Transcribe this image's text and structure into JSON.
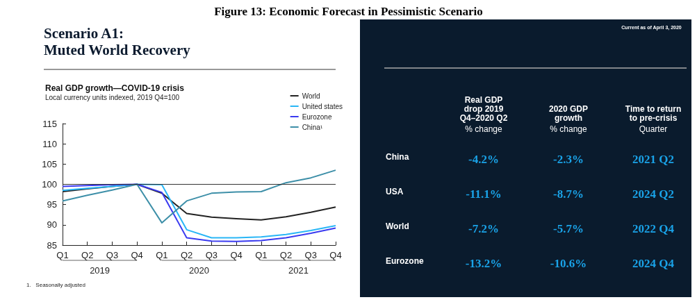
{
  "chart_data": [
    {
      "type": "line",
      "title": "Real GDP growth—COVID-19 crisis",
      "subtitle": "Local currency units indexed, 2019 Q4=100",
      "annotations": [
        "Figure 13: Economic Forecast in Pessimistic Scenario",
        "Scenario A1:\nMuted World Recovery",
        "2019",
        "2020",
        "2021",
        "1.   Seasonally adjusted"
      ],
      "categories": [
        "Q1",
        "Q2",
        "Q3",
        "Q4",
        "Q1",
        "Q2",
        "Q3",
        "Q4",
        "Q1",
        "Q2",
        "Q3",
        "Q4"
      ],
      "series": [
        {
          "name": "World",
          "color": "#222222",
          "values": [
            98.2,
            98.9,
            99.5,
            100,
            97.8,
            92.8,
            91.9,
            91.5,
            91.2,
            92.0,
            93.1,
            94.4
          ]
        },
        {
          "name": "United states",
          "color": "#29b6f6",
          "values": [
            98.5,
            99.0,
            99.5,
            100,
            99.9,
            88.8,
            86.8,
            86.8,
            87.0,
            87.6,
            88.6,
            89.8
          ]
        },
        {
          "name": "Eurozone",
          "color": "#3a3af0",
          "values": [
            99.5,
            99.7,
            99.9,
            100,
            98.0,
            86.8,
            86.0,
            85.9,
            86.1,
            86.8,
            87.9,
            89.2
          ]
        },
        {
          "name": "China¹",
          "color": "#3d8fa8",
          "values": [
            95.9,
            97.3,
            98.6,
            100,
            90.5,
            95.9,
            97.8,
            98.1,
            98.2,
            100.4,
            101.6,
            103.5
          ]
        }
      ],
      "ylim": [
        85,
        115
      ],
      "yticks": [
        85,
        90,
        95,
        100,
        105,
        110,
        115
      ],
      "ref_lines": [
        {
          "axis": "y",
          "value": 100,
          "label": null,
          "color": "#333333"
        }
      ],
      "grid": false,
      "legend": "top right",
      "marker": "none",
      "line_style": "solid"
    },
    {
      "type": "other",
      "subtitle": "Current as of April 3, 2020",
      "categories": [
        "Real GDP\ndrop 2019\nQ4–2020 Q2\n% change",
        "2020 GDP\ngrowth\n% change",
        "Time to return\nto pre-crisis\nQuarter"
      ],
      "y_categories": [
        "China",
        "USA",
        "World",
        "Eurozone"
      ],
      "cell_labels": [
        [
          "-4.2%",
          "-2.3%",
          "2021 Q2"
        ],
        [
          "-11.1%",
          "-8.7%",
          "2024 Q2"
        ],
        [
          "-7.2%",
          "-5.7%",
          "2022 Q4"
        ],
        [
          "-13.2%",
          "-10.6%",
          "2024 Q4"
        ]
      ]
    }
  ]
}
